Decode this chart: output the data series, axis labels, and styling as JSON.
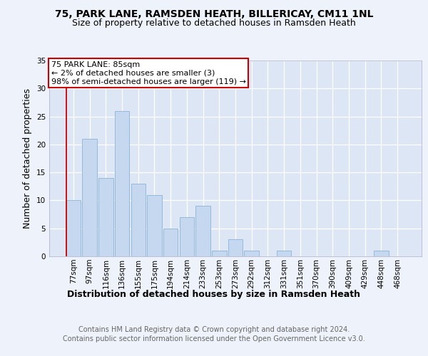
{
  "title1": "75, PARK LANE, RAMSDEN HEATH, BILLERICAY, CM11 1NL",
  "title2": "Size of property relative to detached houses in Ramsden Heath",
  "xlabel": "Distribution of detached houses by size in Ramsden Heath",
  "ylabel": "Number of detached properties",
  "categories": [
    "77sqm",
    "97sqm",
    "116sqm",
    "136sqm",
    "155sqm",
    "175sqm",
    "194sqm",
    "214sqm",
    "233sqm",
    "253sqm",
    "273sqm",
    "292sqm",
    "312sqm",
    "331sqm",
    "351sqm",
    "370sqm",
    "390sqm",
    "409sqm",
    "429sqm",
    "448sqm",
    "468sqm"
  ],
  "values": [
    10,
    21,
    14,
    26,
    13,
    11,
    5,
    7,
    9,
    1,
    3,
    1,
    0,
    1,
    0,
    0,
    0,
    0,
    0,
    1,
    0
  ],
  "bar_color": "#c5d8f0",
  "bar_edge_color": "#8ab4d8",
  "annotation_box_text": "75 PARK LANE: 85sqm\n← 2% of detached houses are smaller (3)\n98% of semi-detached houses are larger (119) →",
  "annotation_box_color": "#ffffff",
  "annotation_box_edge_color": "#cc0000",
  "vline_color": "#cc0000",
  "ylim": [
    0,
    35
  ],
  "yticks": [
    0,
    5,
    10,
    15,
    20,
    25,
    30,
    35
  ],
  "footer_text": "Contains HM Land Registry data © Crown copyright and database right 2024.\nContains public sector information licensed under the Open Government Licence v3.0.",
  "bg_color": "#eef2fa",
  "plot_bg_color": "#dde6f5",
  "grid_color": "#ffffff",
  "title_fontsize": 10,
  "subtitle_fontsize": 9,
  "axis_label_fontsize": 9,
  "tick_fontsize": 7.5,
  "footer_fontsize": 7,
  "annotation_fontsize": 8
}
